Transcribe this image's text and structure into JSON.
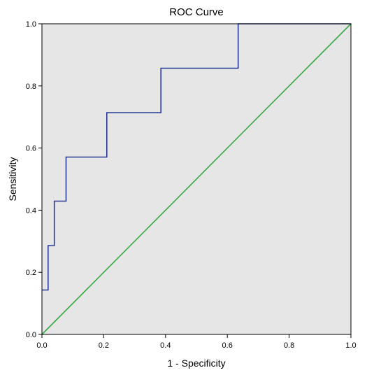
{
  "chart_data": {
    "type": "line",
    "title": "ROC Curve",
    "xlabel": "1 - Specificity",
    "ylabel": "Sensitivity",
    "xlim": [
      0,
      1
    ],
    "ylim": [
      0,
      1
    ],
    "xticks": [
      "0.0",
      "0.2",
      "0.4",
      "0.6",
      "0.8",
      "1.0"
    ],
    "yticks": [
      "0.0",
      "0.2",
      "0.4",
      "0.6",
      "0.8",
      "1.0"
    ],
    "grid": false,
    "background_color": "#e6e6e6",
    "series": [
      {
        "color": "#2a3a96",
        "step": true,
        "x": [
          0.0,
          0.02,
          0.02,
          0.04,
          0.04,
          0.078,
          0.078,
          0.21,
          0.21,
          0.385,
          0.385,
          0.635,
          0.635,
          1.0
        ],
        "y": [
          0.143,
          0.143,
          0.286,
          0.286,
          0.429,
          0.429,
          0.571,
          0.571,
          0.714,
          0.714,
          0.857,
          0.857,
          1.0,
          1.0
        ]
      },
      {
        "color": "#3aa845",
        "step": false,
        "x": [
          0.0,
          1.0
        ],
        "y": [
          0.0,
          1.0
        ]
      }
    ]
  }
}
